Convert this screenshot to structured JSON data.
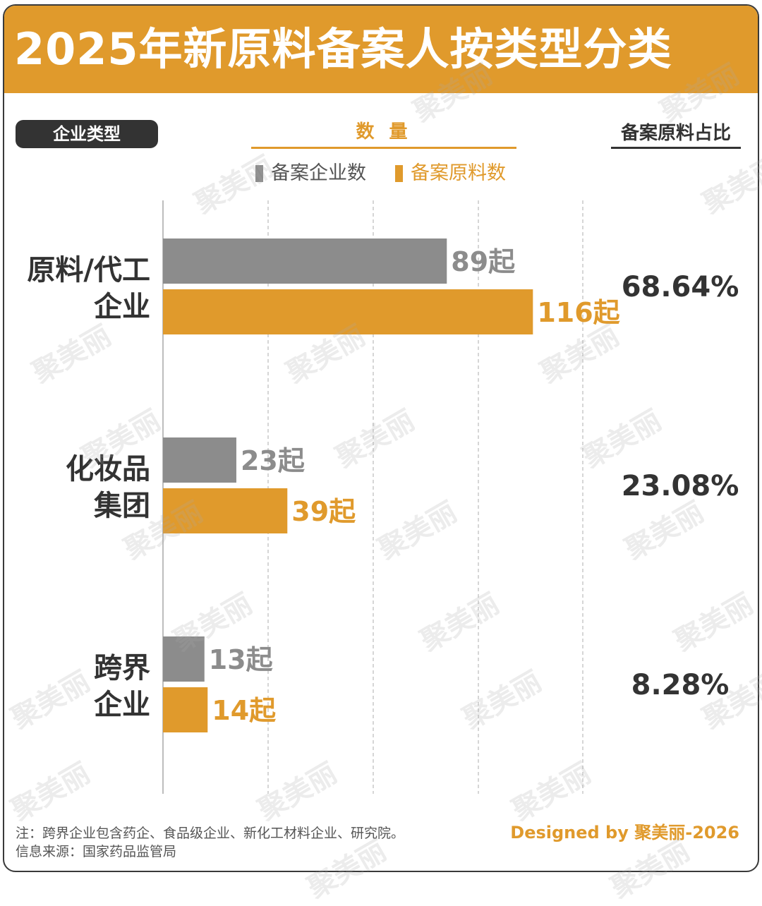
{
  "header": {
    "title": "2025年新原料备案人按类型分类"
  },
  "columns": {
    "type_label": "企业类型",
    "quantity_label": "数 量",
    "ratio_label": "备案原料占比"
  },
  "legend": [
    {
      "label": "备案企业数",
      "color": "#8c8c8c"
    },
    {
      "label": "备案原料数",
      "color": "#e09a2c"
    }
  ],
  "chart_data": {
    "type": "bar",
    "orientation": "horizontal",
    "title": "2025年新原料备案人按类型分类",
    "categories": [
      {
        "lines": [
          "原料/代工",
          "企业"
        ]
      },
      {
        "lines": [
          "化妆品",
          "集团"
        ]
      },
      {
        "lines": [
          "跨界",
          "企业"
        ]
      }
    ],
    "series": [
      {
        "name": "备案企业数",
        "color": "#8c8c8c",
        "values": [
          89,
          23,
          13
        ]
      },
      {
        "name": "备案原料数",
        "color": "#e09a2c",
        "values": [
          116,
          39,
          14
        ]
      }
    ],
    "value_suffix": "起",
    "ratios": [
      "68.64%",
      "23.08%",
      "8.28%"
    ],
    "xlim": [
      0,
      135
    ],
    "grid": "vertical-dashed"
  },
  "footer": {
    "note": "注：跨界企业包含药企、食品级企业、新化工材料企业、研究院。",
    "source": "信息来源：国家药品监管局",
    "credit": "Designed by 聚美丽-2026"
  },
  "watermark": {
    "text": "聚美丽"
  }
}
